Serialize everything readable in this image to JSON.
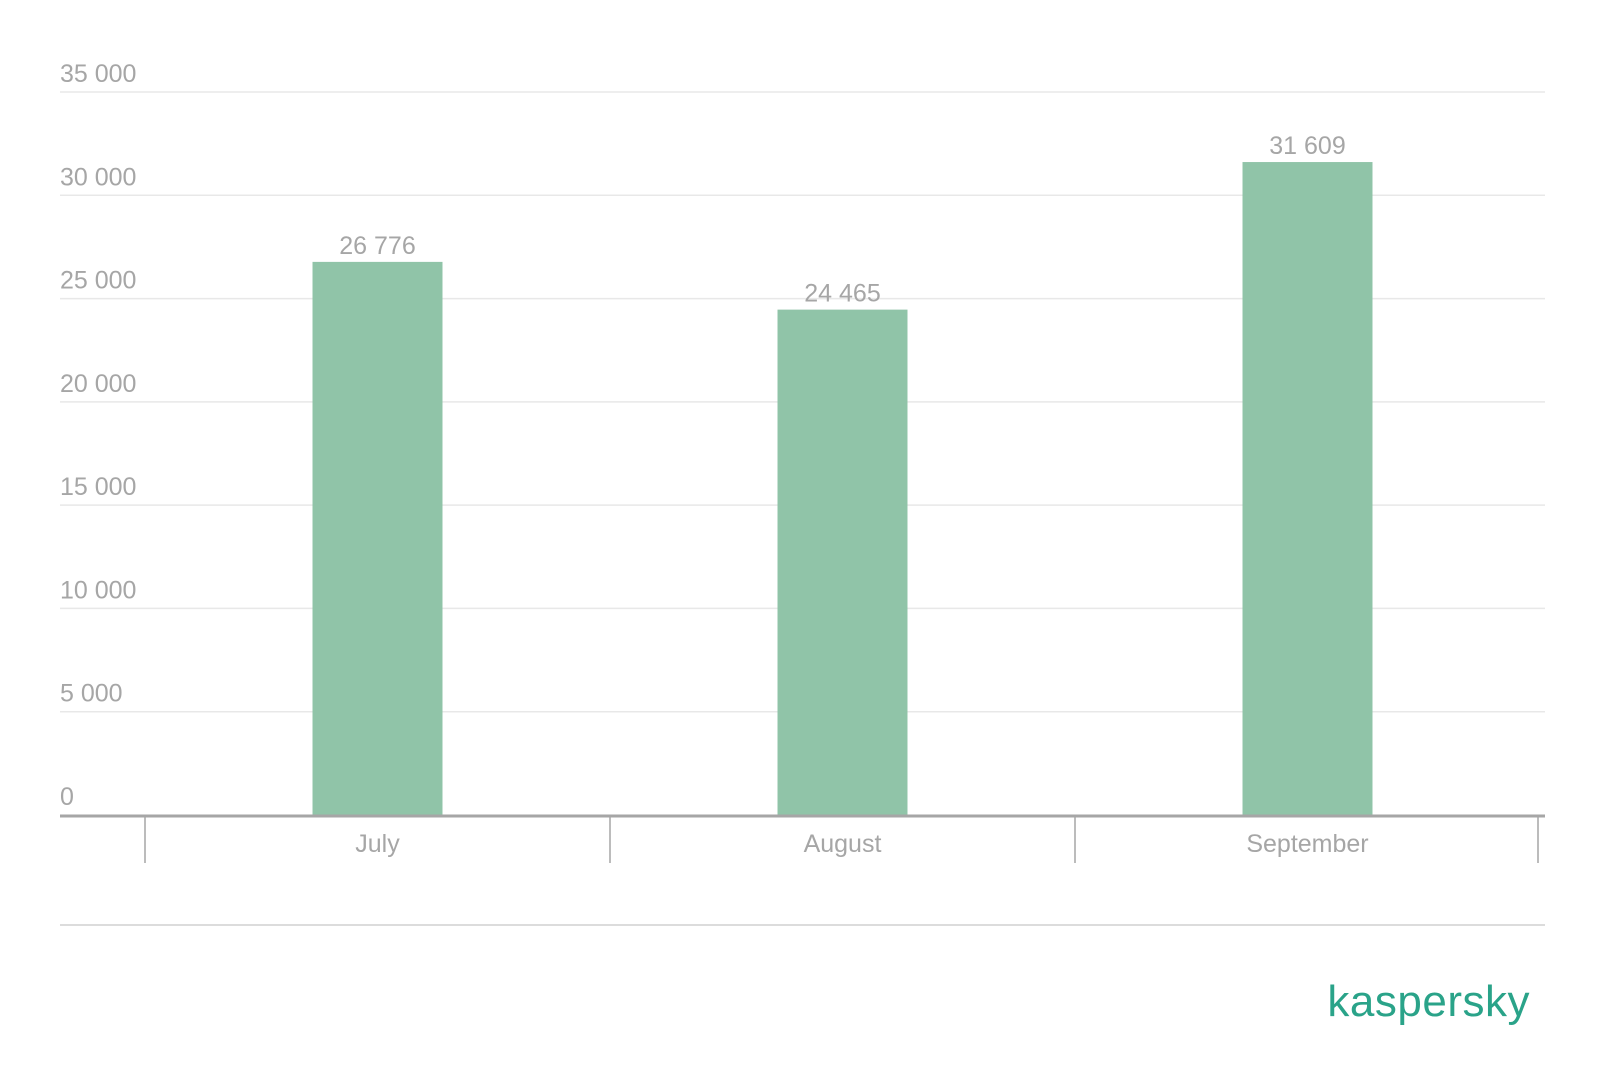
{
  "colors": {
    "bar": "#90c4a8",
    "text": "#a6a6a6",
    "grid": "#e8e8e8",
    "axis": "#a6a6a6",
    "brand": "#2aa389"
  },
  "brand": {
    "logo_text": "kaspersky"
  },
  "chart_data": {
    "type": "bar",
    "categories": [
      "July",
      "August",
      "September"
    ],
    "values": [
      26776,
      24465,
      31609
    ],
    "value_labels": [
      "26 776",
      "24 465",
      "31 609"
    ],
    "ylim": [
      0,
      35000
    ],
    "y_ticks": [
      0,
      5000,
      10000,
      15000,
      20000,
      25000,
      30000,
      35000
    ],
    "y_tick_labels": [
      "0",
      "5 000",
      "10 000",
      "15 000",
      "20 000",
      "25 000",
      "30 000",
      "35 000"
    ],
    "grid": true,
    "legend": "none",
    "title": "",
    "xlabel": "",
    "ylabel": ""
  }
}
